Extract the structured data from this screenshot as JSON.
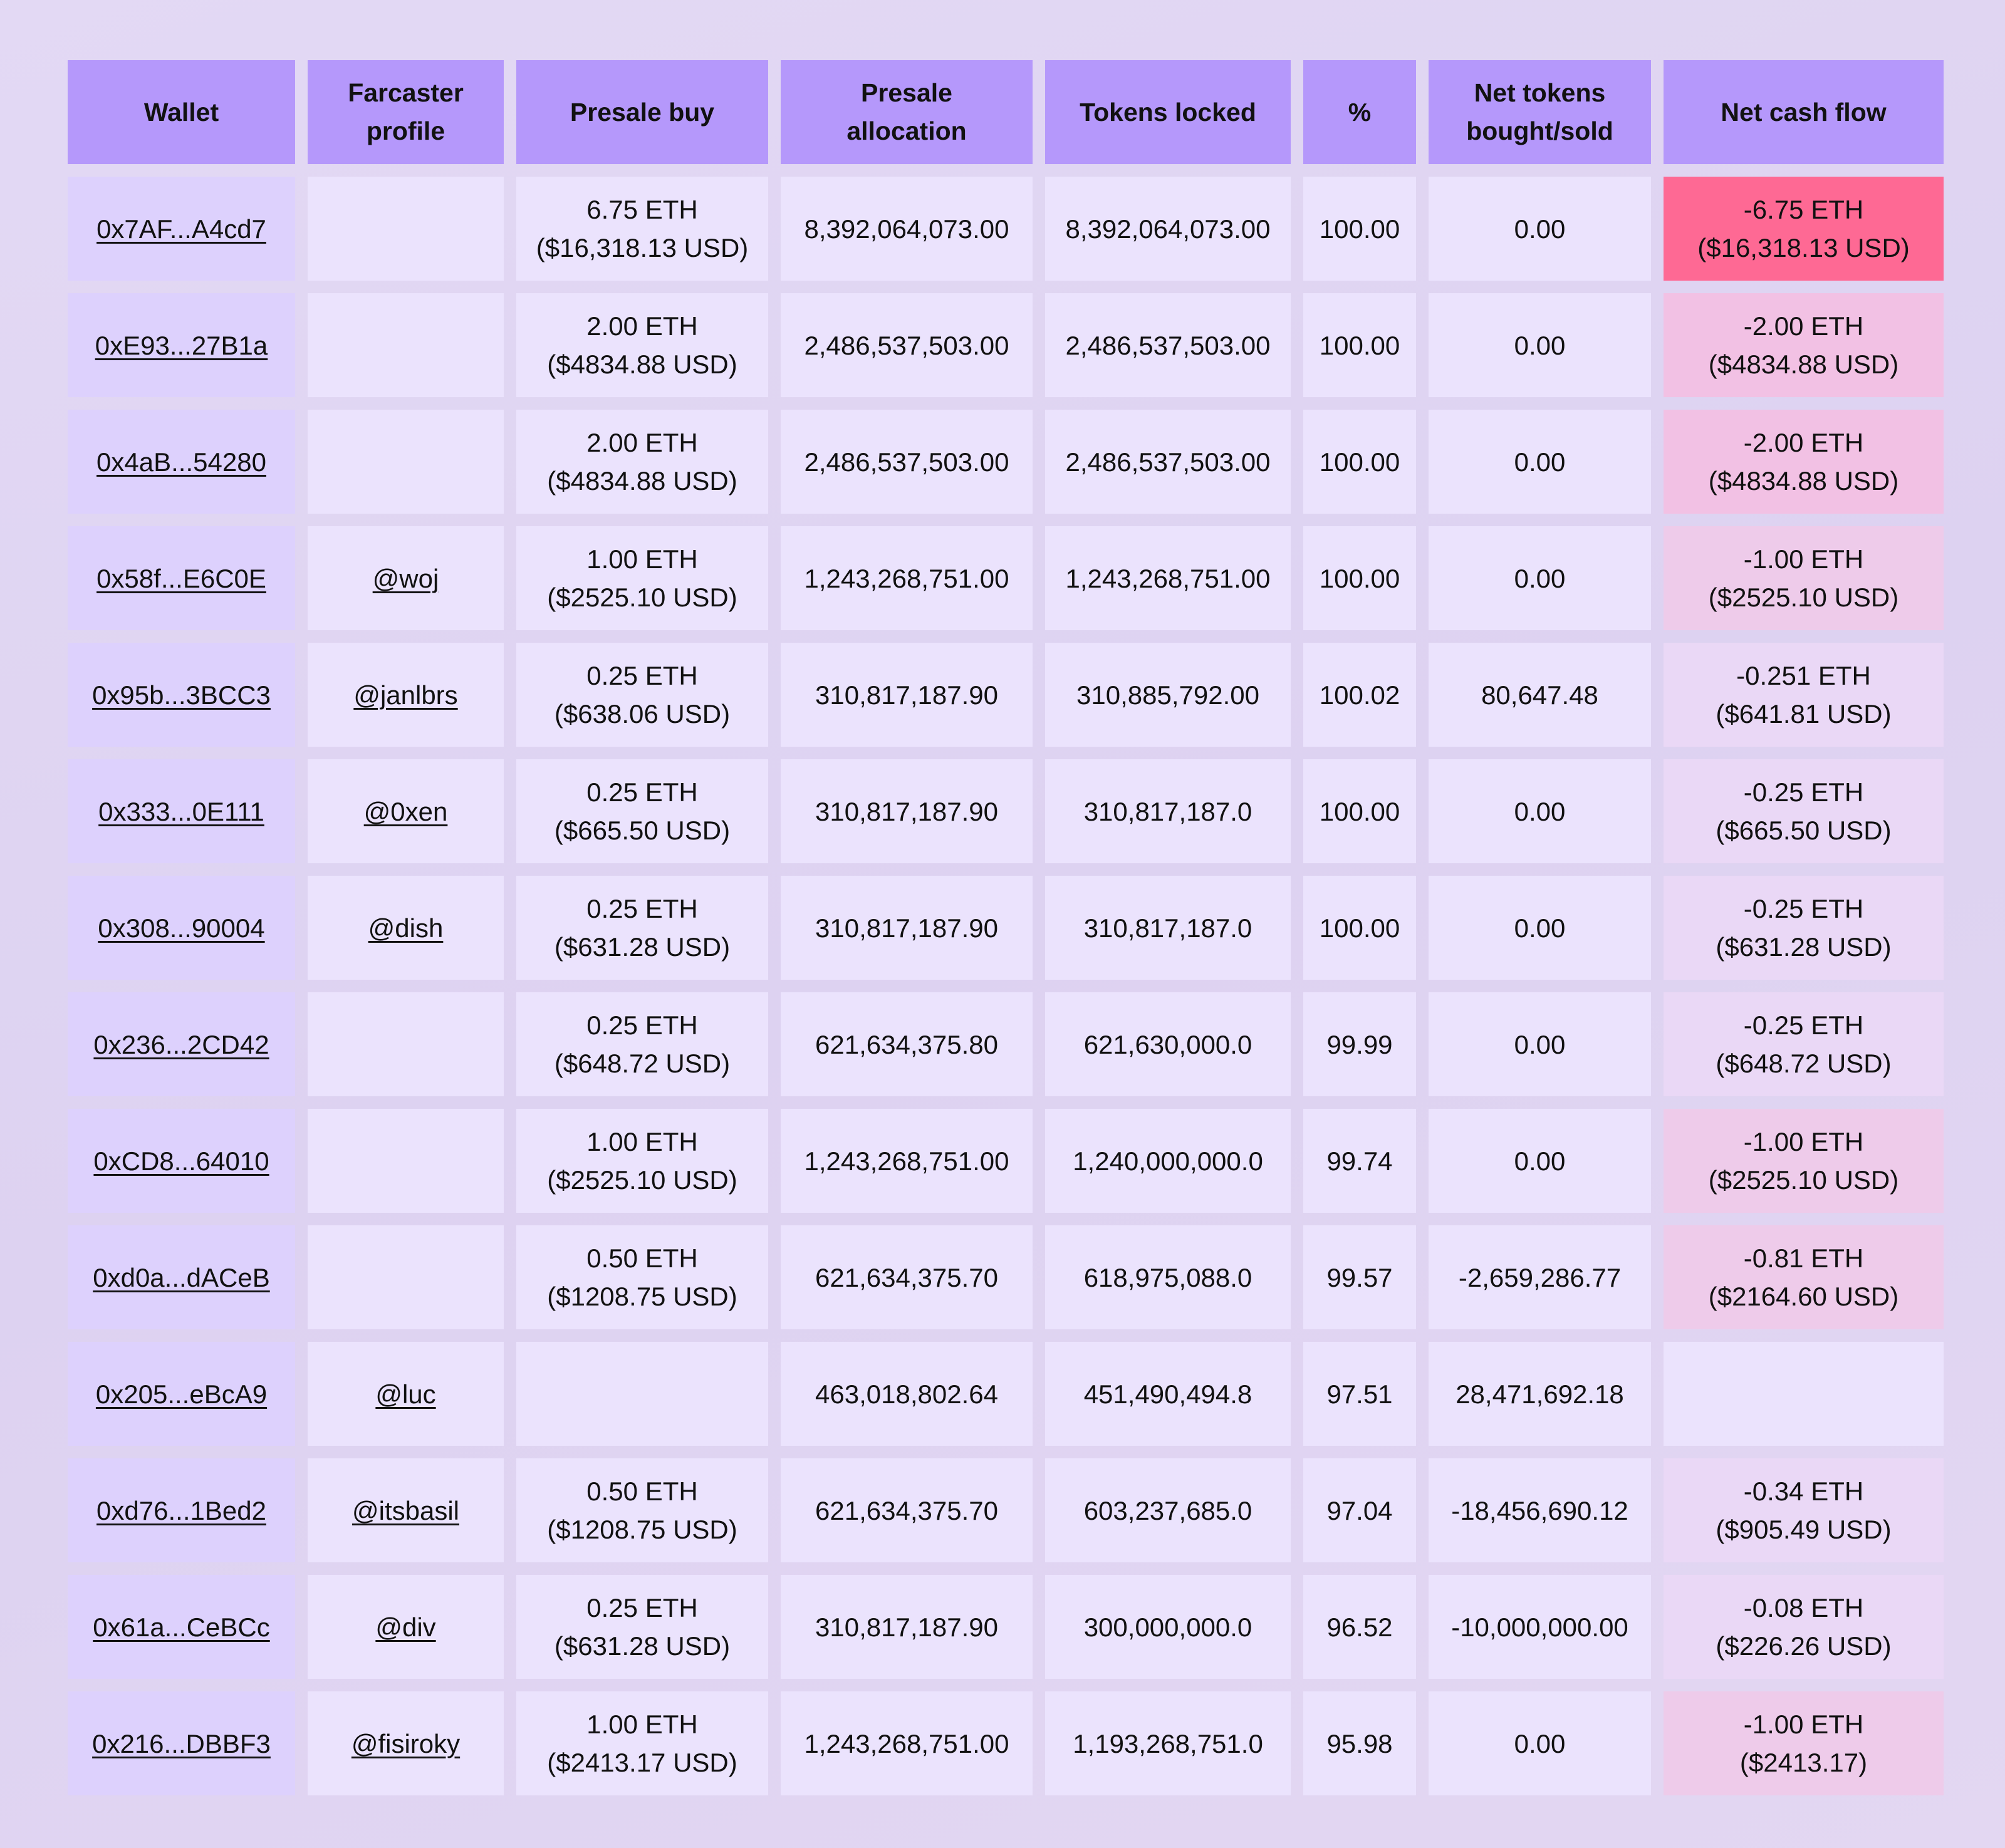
{
  "table": {
    "headers": [
      [
        "Wallet"
      ],
      [
        "Farcaster",
        "profile"
      ],
      [
        "Presale buy"
      ],
      [
        "Presale",
        "allocation"
      ],
      [
        "Tokens locked"
      ],
      [
        "%"
      ],
      [
        "Net tokens",
        "bought/sold"
      ],
      [
        "Net cash flow"
      ]
    ],
    "rows": [
      {
        "wallet": "0x7AF...A4cd7",
        "profile": "",
        "buy": [
          "6.75 ETH",
          "($16,318.13 USD)"
        ],
        "allocation": "8,392,064,073.00",
        "locked": "8,392,064,073.00",
        "pct": "100.00",
        "net": "0.00",
        "cash": [
          "-6.75 ETH",
          "($16,318.13 USD)"
        ],
        "cash_level": "strong"
      },
      {
        "wallet": "0xE93...27B1a",
        "profile": "",
        "buy": [
          "2.00 ETH",
          "($4834.88 USD)"
        ],
        "allocation": "2,486,537,503.00",
        "locked": "2,486,537,503.00",
        "pct": "100.00",
        "net": "0.00",
        "cash": [
          "-2.00 ETH",
          "($4834.88 USD)"
        ],
        "cash_level": "high"
      },
      {
        "wallet": "0x4aB...54280",
        "profile": "",
        "buy": [
          "2.00 ETH",
          "($4834.88 USD)"
        ],
        "allocation": "2,486,537,503.00",
        "locked": "2,486,537,503.00",
        "pct": "100.00",
        "net": "0.00",
        "cash": [
          "-2.00 ETH",
          "($4834.88 USD)"
        ],
        "cash_level": "high"
      },
      {
        "wallet": "0x58f...E6C0E",
        "profile": "@woj",
        "buy": [
          "1.00 ETH",
          "($2525.10 USD)"
        ],
        "allocation": "1,243,268,751.00",
        "locked": "1,243,268,751.00",
        "pct": "100.00",
        "net": "0.00",
        "cash": [
          "-1.00 ETH",
          "($2525.10 USD)"
        ],
        "cash_level": "mid"
      },
      {
        "wallet": "0x95b...3BCC3",
        "profile": "@janlbrs",
        "buy": [
          "0.25 ETH",
          "($638.06 USD)"
        ],
        "allocation": "310,817,187.90",
        "locked": "310,885,792.00",
        "pct": "100.02",
        "net": "80,647.48",
        "cash": [
          "-0.251 ETH",
          "($641.81 USD)"
        ],
        "cash_level": "low"
      },
      {
        "wallet": "0x333...0E111",
        "profile": "@0xen",
        "buy": [
          "0.25 ETH",
          "($665.50 USD)"
        ],
        "allocation": "310,817,187.90",
        "locked": "310,817,187.0",
        "pct": "100.00",
        "net": "0.00",
        "cash": [
          "-0.25 ETH",
          "($665.50 USD)"
        ],
        "cash_level": "low"
      },
      {
        "wallet": "0x308...90004",
        "profile": "@dish",
        "buy": [
          "0.25 ETH",
          "($631.28 USD)"
        ],
        "allocation": "310,817,187.90",
        "locked": "310,817,187.0",
        "pct": "100.00",
        "net": "0.00",
        "cash": [
          "-0.25 ETH",
          "($631.28 USD)"
        ],
        "cash_level": "low"
      },
      {
        "wallet": "0x236...2CD42",
        "profile": "",
        "buy": [
          "0.25 ETH",
          "($648.72 USD)"
        ],
        "allocation": "621,634,375.80",
        "locked": "621,630,000.0",
        "pct": "99.99",
        "net": "0.00",
        "cash": [
          "-0.25 ETH",
          "($648.72 USD)"
        ],
        "cash_level": "low"
      },
      {
        "wallet": "0xCD8...64010",
        "profile": "",
        "buy": [
          "1.00 ETH",
          "($2525.10 USD)"
        ],
        "allocation": "1,243,268,751.00",
        "locked": "1,240,000,000.0",
        "pct": "99.74",
        "net": "0.00",
        "cash": [
          "-1.00 ETH",
          "($2525.10 USD)"
        ],
        "cash_level": "mid"
      },
      {
        "wallet": "0xd0a...dACeB",
        "profile": "",
        "buy": [
          "0.50 ETH",
          "($1208.75 USD)"
        ],
        "allocation": "621,634,375.70",
        "locked": "618,975,088.0",
        "pct": "99.57",
        "net": "-2,659,286.77",
        "cash": [
          "-0.81 ETH",
          "($2164.60 USD)"
        ],
        "cash_level": "mid"
      },
      {
        "wallet": "0x205...eBcA9",
        "profile": "@luc",
        "buy": [
          "",
          ""
        ],
        "allocation": "463,018,802.64",
        "locked": "451,490,494.8",
        "pct": "97.51",
        "net": "28,471,692.18",
        "cash": [
          "",
          ""
        ],
        "cash_level": "none"
      },
      {
        "wallet": "0xd76...1Bed2",
        "profile": "@itsbasil",
        "buy": [
          "0.50 ETH",
          "($1208.75 USD)"
        ],
        "allocation": "621,634,375.70",
        "locked": "603,237,685.0",
        "pct": "97.04",
        "net": "-18,456,690.12",
        "cash": [
          "-0.34 ETH",
          "($905.49 USD)"
        ],
        "cash_level": "low"
      },
      {
        "wallet": "0x61a...CeBCc",
        "profile": "@div",
        "buy": [
          "0.25 ETH",
          "($631.28 USD)"
        ],
        "allocation": "310,817,187.90",
        "locked": "300,000,000.0",
        "pct": "96.52",
        "net": "-10,000,000.00",
        "cash": [
          "-0.08 ETH",
          "($226.26 USD)"
        ],
        "cash_level": "low"
      },
      {
        "wallet": "0x216...DBBF3",
        "profile": "@fisiroky",
        "buy": [
          "1.00 ETH",
          "($2413.17 USD)"
        ],
        "allocation": "1,243,268,751.00",
        "locked": "1,193,268,751.0",
        "pct": "95.98",
        "net": "0.00",
        "cash": [
          "-1.00 ETH",
          "($2413.17)"
        ],
        "cash_level": "mid"
      }
    ]
  }
}
